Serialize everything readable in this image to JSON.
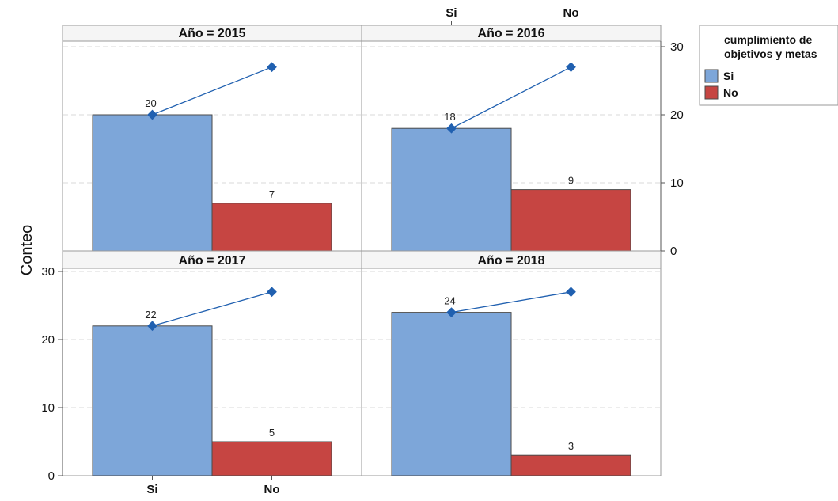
{
  "chart_data": {
    "type": "bar",
    "categories": [
      "Si",
      "No"
    ],
    "ylabel": "Conteo",
    "ylim": [
      0,
      30
    ],
    "yticks": [
      0,
      10,
      20,
      30
    ],
    "grid": true,
    "legend_position": "right",
    "legend_title": "cumplimiento de objetivos y metas",
    "series_colors": {
      "Si": "#7da6d9",
      "No": "#c64542"
    },
    "line_color": "#2060b0",
    "panels": [
      {
        "title": "Año = 2015",
        "values": [
          20,
          7
        ],
        "line": [
          20,
          27
        ]
      },
      {
        "title": "Año = 2016",
        "values": [
          18,
          9
        ],
        "line": [
          18,
          27
        ]
      },
      {
        "title": "Año = 2017",
        "values": [
          22,
          5
        ],
        "line": [
          22,
          27
        ]
      },
      {
        "title": "Año = 2018",
        "values": [
          24,
          3
        ],
        "line": [
          24,
          27
        ]
      }
    ]
  },
  "legend": {
    "title_lines": [
      "cumplimiento de",
      "objetivos y metas"
    ],
    "items": [
      {
        "label": "Si",
        "color": "#7da6d9"
      },
      {
        "label": "No",
        "color": "#c64542"
      }
    ]
  }
}
